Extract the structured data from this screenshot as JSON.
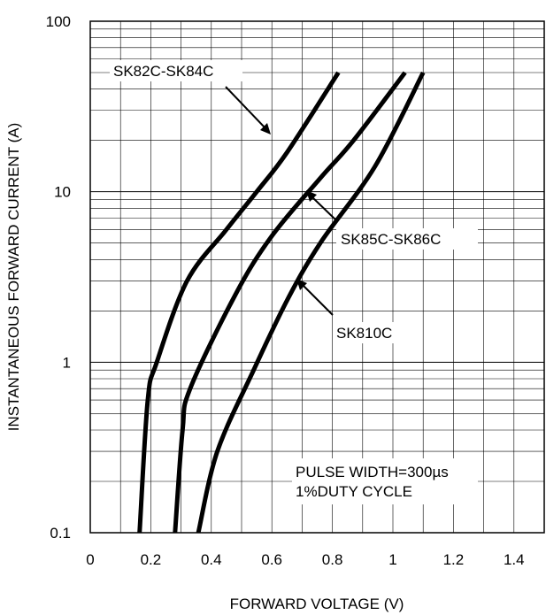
{
  "chart_data": {
    "type": "line",
    "title": "",
    "xlabel": "FORWARD VOLTAGE (V)",
    "ylabel": "INSTANTANEOUS FORWARD CURRENT (A)",
    "xlim": [
      0,
      1.5
    ],
    "ylim": [
      0.1,
      100
    ],
    "yscale": "log",
    "grid": true,
    "x_ticks": [
      "0",
      "0.2",
      "0.4",
      "0.6",
      "0.8",
      "1",
      "1.2",
      "1.4"
    ],
    "x_tick_values": [
      0,
      0.2,
      0.4,
      0.6,
      0.8,
      1.0,
      1.2,
      1.4
    ],
    "y_ticks": [
      "0.1",
      "1",
      "10",
      "100"
    ],
    "y_tick_values": [
      0.1,
      1,
      10,
      100
    ],
    "series": [
      {
        "name": "SK82C-SK84C",
        "points": [
          [
            0.163,
            0.1
          ],
          [
            0.19,
            0.6
          ],
          [
            0.22,
            1.0
          ],
          [
            0.32,
            3.0
          ],
          [
            0.45,
            6.0
          ],
          [
            0.55,
            10.0
          ],
          [
            0.65,
            17.0
          ],
          [
            0.82,
            50.0
          ]
        ]
      },
      {
        "name": "SK85C-SK86C",
        "points": [
          [
            0.28,
            0.1
          ],
          [
            0.305,
            0.4
          ],
          [
            0.33,
            0.7
          ],
          [
            0.48,
            2.5
          ],
          [
            0.6,
            5.5
          ],
          [
            0.76,
            12.0
          ],
          [
            0.87,
            20.0
          ],
          [
            1.04,
            50.0
          ]
        ]
      },
      {
        "name": "SK810C",
        "points": [
          [
            0.357,
            0.1
          ],
          [
            0.42,
            0.3
          ],
          [
            0.54,
            0.9
          ],
          [
            0.65,
            2.3
          ],
          [
            0.76,
            5.0
          ],
          [
            0.94,
            14.0
          ],
          [
            1.1,
            50.0
          ]
        ]
      }
    ],
    "annotations": [
      "PULSE WIDTH=300µs",
      "1%DUTY CYCLE"
    ]
  }
}
